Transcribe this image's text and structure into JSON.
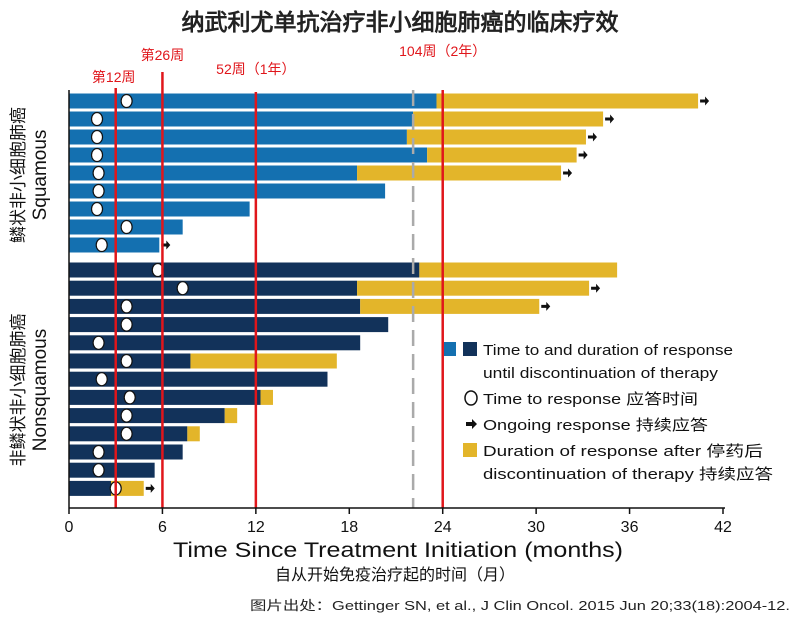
{
  "chart_data": {
    "type": "bar",
    "subtype": "swimmer",
    "title": "纳武利尤单抗治疗非小细胞肺癌的临床疗效",
    "xlabel": "Time Since Treatment Initiation (months)",
    "xlabel_cn": "自从开始免疫治疗起的时间（月）",
    "xlim": [
      0,
      42
    ],
    "xticks": [
      0,
      6,
      12,
      18,
      24,
      30,
      36,
      42
    ],
    "grid": false,
    "colors": {
      "squamous": "#1470b0",
      "nonsquamous": "#12325a",
      "after": "#e3b52a",
      "marker_line": "#e0161b",
      "dashed": "#aaaaaa"
    },
    "reference_lines": [
      {
        "label": "第12周",
        "x": 3
      },
      {
        "label": "第26周",
        "x": 6
      },
      {
        "label": "52周（1年）",
        "x": 12
      },
      {
        "label": "104周（2年）",
        "x": 24
      }
    ],
    "dashed_line_x": 22.1,
    "groups": [
      {
        "label_cn": "鳞状非小细胞肺癌",
        "label": "Squamous",
        "color_key": "squamous",
        "patients": [
          {
            "on_therapy": 23.6,
            "total": 40.4,
            "response_time": 3.7,
            "ongoing": true
          },
          {
            "on_therapy": 22.1,
            "total": 34.3,
            "response_time": 1.8,
            "ongoing": true
          },
          {
            "on_therapy": 21.7,
            "total": 33.2,
            "response_time": 1.8,
            "ongoing": true
          },
          {
            "on_therapy": 23.0,
            "total": 32.6,
            "response_time": 1.8,
            "ongoing": true
          },
          {
            "on_therapy": 18.5,
            "total": 31.6,
            "response_time": 1.9,
            "ongoing": true
          },
          {
            "on_therapy": 20.3,
            "total": 20.3,
            "response_time": 1.9,
            "ongoing": false
          },
          {
            "on_therapy": 11.6,
            "total": 11.6,
            "response_time": 1.8,
            "ongoing": false
          },
          {
            "on_therapy": 7.3,
            "total": 7.3,
            "response_time": 3.7,
            "ongoing": false
          },
          {
            "on_therapy": 5.8,
            "total": 5.8,
            "response_time": 2.1,
            "ongoing": true
          }
        ]
      },
      {
        "label_cn": "非鳞状非小细胞肺癌",
        "label": "Nonsquamous",
        "color_key": "nonsquamous",
        "patients": [
          {
            "on_therapy": 22.5,
            "total": 35.2,
            "response_time": 5.7,
            "ongoing": false
          },
          {
            "on_therapy": 18.5,
            "total": 33.4,
            "response_time": 7.3,
            "ongoing": true
          },
          {
            "on_therapy": 18.7,
            "total": 30.2,
            "response_time": 3.7,
            "ongoing": true
          },
          {
            "on_therapy": 20.5,
            "total": 20.5,
            "response_time": 3.7,
            "ongoing": false
          },
          {
            "on_therapy": 18.7,
            "total": 18.7,
            "response_time": 1.9,
            "ongoing": false
          },
          {
            "on_therapy": 7.8,
            "total": 17.2,
            "response_time": 3.7,
            "ongoing": false
          },
          {
            "on_therapy": 16.6,
            "total": 16.6,
            "response_time": 2.1,
            "ongoing": false
          },
          {
            "on_therapy": 12.3,
            "total": 13.1,
            "response_time": 3.9,
            "ongoing": false
          },
          {
            "on_therapy": 10.0,
            "total": 10.8,
            "response_time": 3.7,
            "ongoing": false
          },
          {
            "on_therapy": 7.6,
            "total": 8.4,
            "response_time": 3.7,
            "ongoing": false
          },
          {
            "on_therapy": 7.3,
            "total": 7.3,
            "response_time": 1.9,
            "ongoing": false
          },
          {
            "on_therapy": 5.5,
            "total": 5.5,
            "response_time": 1.9,
            "ongoing": false
          },
          {
            "on_therapy": 2.7,
            "total": 4.8,
            "response_time": 3.0,
            "ongoing": true
          }
        ]
      }
    ],
    "legend": {
      "placement": "right",
      "items": [
        {
          "kind": "bars",
          "line1": "Time to and duration of response",
          "line2": "until discontinuation of therapy"
        },
        {
          "kind": "circle",
          "line1": "Time to response 应答时间"
        },
        {
          "kind": "arrow",
          "line1": "Ongoing response 持续应答"
        },
        {
          "kind": "after",
          "line1": "Duration of response after 停药后",
          "line2": "discontinuation of therapy 持续应答"
        }
      ]
    },
    "source": "图片出处：Gettinger SN, et al., J Clin Oncol. 2015 Jun 20;33(18):2004-12."
  }
}
